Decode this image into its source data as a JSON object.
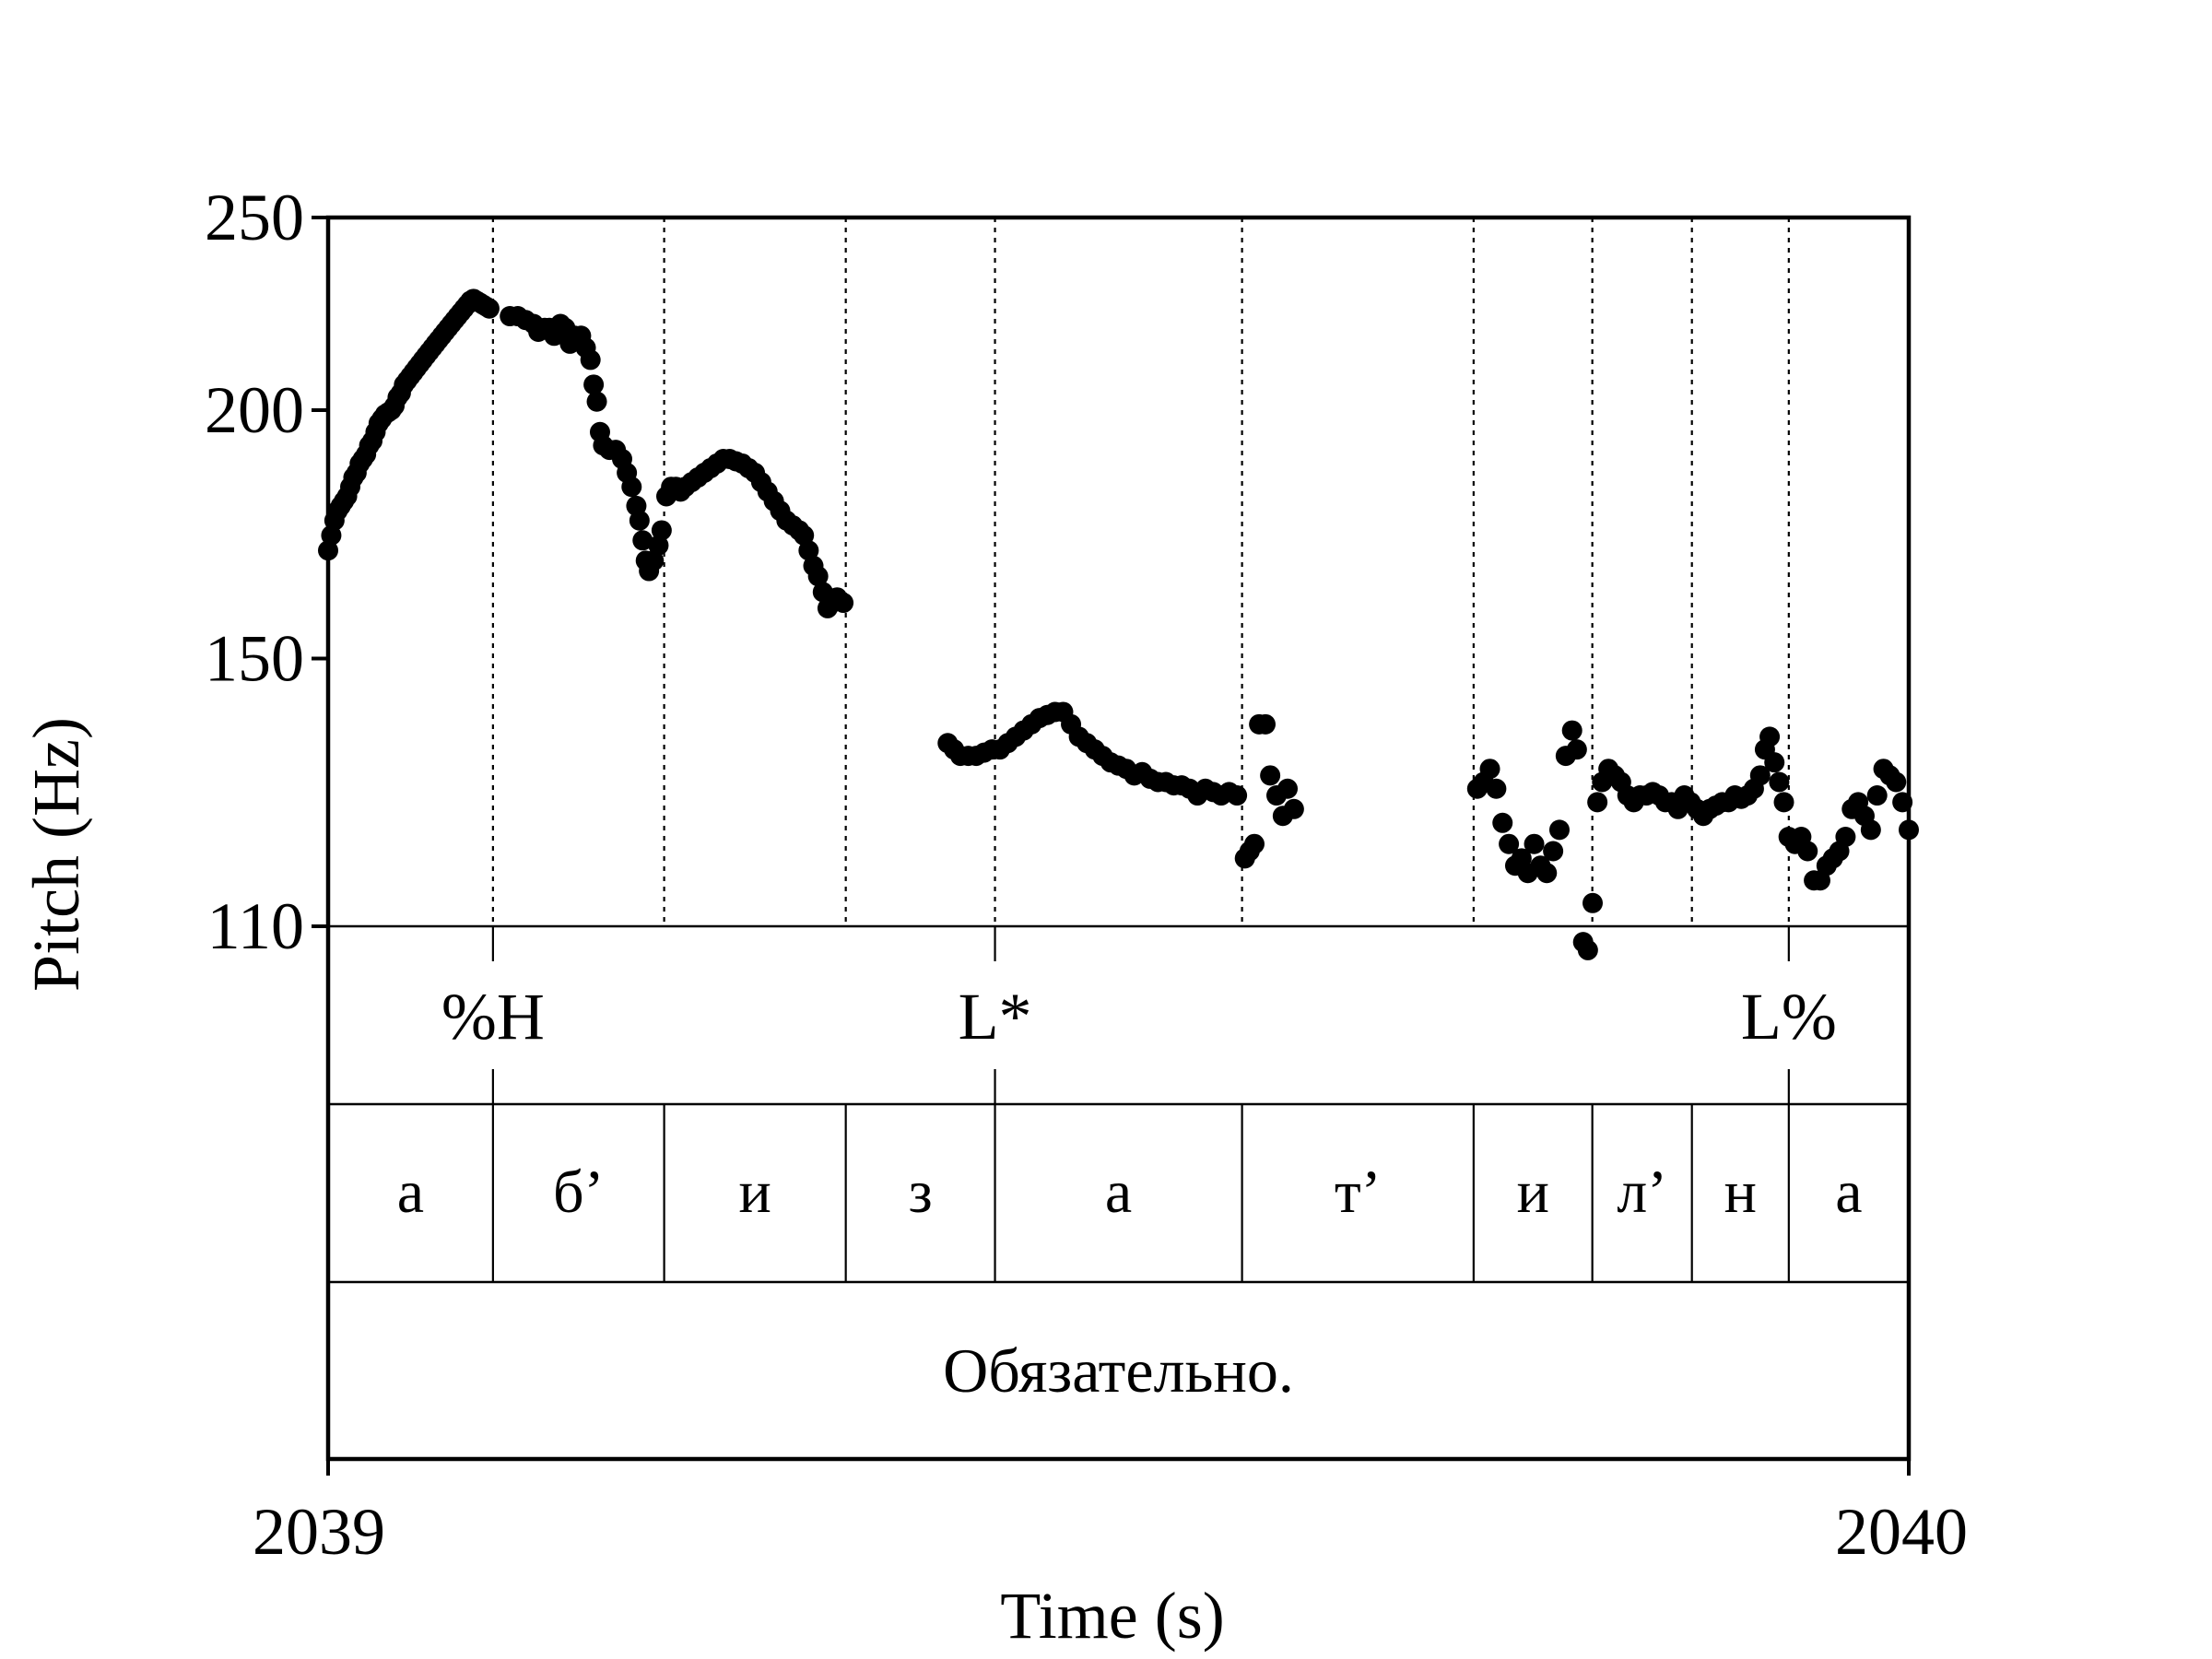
{
  "chart_data": {
    "type": "scatter",
    "xlabel": "Time (s)",
    "ylabel": "Pitch (Hz)",
    "xlim": [
      2039,
      2040
    ],
    "ylim": [
      110,
      250
    ],
    "y_scale": "log",
    "x_ticks": [
      "2039",
      "2040"
    ],
    "y_ticks": [
      {
        "value": 110,
        "label": "110"
      },
      {
        "value": 150,
        "label": "150"
      },
      {
        "value": 200,
        "label": "200"
      },
      {
        "value": 250,
        "label": "250"
      }
    ],
    "boundaries": [
      2039.1043,
      2039.2126,
      2039.3275,
      2039.4219,
      2039.5782,
      2039.7247,
      2039.7998,
      2039.8628,
      2039.9241
    ],
    "tone_tier": [
      {
        "label": "%H",
        "time": 2039.1043
      },
      {
        "label": "L*",
        "time": 2039.4219
      },
      {
        "label": "L%",
        "time": 2039.9241
      }
    ],
    "segment_tier": [
      {
        "label": "а",
        "start": 2039.0,
        "end": 2039.1043
      },
      {
        "label": "б’",
        "start": 2039.1043,
        "end": 2039.2126
      },
      {
        "label": "и",
        "start": 2039.2126,
        "end": 2039.3275
      },
      {
        "label": "з",
        "start": 2039.3275,
        "end": 2039.4219
      },
      {
        "label": "а",
        "start": 2039.4219,
        "end": 2039.5782
      },
      {
        "label": "т’",
        "start": 2039.5782,
        "end": 2039.7247
      },
      {
        "label": "и",
        "start": 2039.7247,
        "end": 2039.7998
      },
      {
        "label": "л’",
        "start": 2039.7998,
        "end": 2039.8628
      },
      {
        "label": "н",
        "start": 2039.8628,
        "end": 2039.9241
      },
      {
        "label": "а",
        "start": 2039.9241,
        "end": 2040.0
      }
    ],
    "word_tier": [
      {
        "label": "Обязательно.",
        "start": 2039.0,
        "end": 2040.0
      }
    ],
    "series": [
      {
        "values": [
          [
            2039.0,
            170
          ],
          [
            2039.002,
            173
          ],
          [
            2039.004,
            176
          ],
          [
            2039.006,
            178
          ],
          [
            2039.008,
            179
          ],
          [
            2039.01,
            180
          ],
          [
            2039.012,
            181
          ],
          [
            2039.014,
            183
          ],
          [
            2039.016,
            185
          ],
          [
            2039.018,
            186
          ],
          [
            2039.02,
            188
          ],
          [
            2039.022,
            189
          ],
          [
            2039.024,
            190
          ],
          [
            2039.026,
            192
          ],
          [
            2039.028,
            193
          ],
          [
            2039.03,
            195
          ],
          [
            2039.032,
            197
          ],
          [
            2039.034,
            198
          ],
          [
            2039.036,
            199
          ],
          [
            2039.038,
            199.5
          ],
          [
            2039.04,
            200
          ],
          [
            2039.042,
            201
          ],
          [
            2039.044,
            203
          ],
          [
            2039.046,
            204
          ],
          [
            2039.048,
            206
          ],
          [
            2039.05,
            207
          ],
          [
            2039.052,
            208
          ],
          [
            2039.054,
            209
          ],
          [
            2039.056,
            210
          ],
          [
            2039.058,
            211
          ],
          [
            2039.06,
            212
          ],
          [
            2039.062,
            213
          ],
          [
            2039.064,
            214
          ],
          [
            2039.066,
            215
          ],
          [
            2039.068,
            216
          ],
          [
            2039.07,
            217
          ],
          [
            2039.072,
            218
          ],
          [
            2039.074,
            219
          ],
          [
            2039.076,
            220
          ],
          [
            2039.078,
            221
          ],
          [
            2039.08,
            222
          ],
          [
            2039.082,
            223
          ],
          [
            2039.084,
            224
          ],
          [
            2039.086,
            225
          ],
          [
            2039.088,
            226
          ],
          [
            2039.09,
            227
          ],
          [
            2039.092,
            227.5
          ],
          [
            2039.094,
            227
          ],
          [
            2039.096,
            226.5
          ],
          [
            2039.098,
            226
          ],
          [
            2039.1,
            225.5
          ],
          [
            2039.102,
            225
          ],
          [
            2039.115,
            223
          ],
          [
            2039.12,
            223
          ],
          [
            2039.125,
            222
          ],
          [
            2039.13,
            221
          ],
          [
            2039.133,
            219
          ],
          [
            2039.137,
            220
          ],
          [
            2039.14,
            220
          ],
          [
            2039.143,
            218
          ],
          [
            2039.147,
            221
          ],
          [
            2039.15,
            220
          ],
          [
            2039.153,
            216
          ],
          [
            2039.156,
            218
          ],
          [
            2039.16,
            218
          ],
          [
            2039.163,
            215
          ],
          [
            2039.166,
            212
          ],
          [
            2039.168,
            206
          ],
          [
            2039.17,
            202
          ],
          [
            2039.172,
            195
          ],
          [
            2039.174,
            192
          ],
          [
            2039.178,
            191
          ],
          [
            2039.182,
            191
          ],
          [
            2039.186,
            189
          ],
          [
            2039.189,
            186
          ],
          [
            2039.192,
            183
          ],
          [
            2039.195,
            179
          ],
          [
            2039.197,
            176
          ],
          [
            2039.199,
            172
          ],
          [
            2039.201,
            168
          ],
          [
            2039.203,
            166
          ],
          [
            2039.206,
            168
          ],
          [
            2039.209,
            171
          ],
          [
            2039.211,
            174
          ],
          [
            2039.214,
            181
          ],
          [
            2039.217,
            183
          ],
          [
            2039.22,
            183
          ],
          [
            2039.223,
            182
          ],
          [
            2039.226,
            183
          ],
          [
            2039.23,
            184
          ],
          [
            2039.234,
            185
          ],
          [
            2039.238,
            186
          ],
          [
            2039.242,
            187
          ],
          [
            2039.246,
            188
          ],
          [
            2039.25,
            189
          ],
          [
            2039.254,
            189
          ],
          [
            2039.258,
            188.5
          ],
          [
            2039.262,
            188
          ],
          [
            2039.266,
            187
          ],
          [
            2039.27,
            186
          ],
          [
            2039.274,
            184
          ],
          [
            2039.278,
            182
          ],
          [
            2039.282,
            180
          ],
          [
            2039.286,
            178
          ],
          [
            2039.29,
            176
          ],
          [
            2039.294,
            175
          ],
          [
            2039.298,
            174
          ],
          [
            2039.301,
            173
          ],
          [
            2039.304,
            170
          ],
          [
            2039.307,
            167
          ],
          [
            2039.31,
            165
          ],
          [
            2039.313,
            162
          ],
          [
            2039.316,
            159
          ],
          [
            2039.319,
            160
          ],
          [
            2039.322,
            161
          ],
          [
            2039.326,
            160
          ],
          [
            2039.392,
            136
          ],
          [
            2039.396,
            135
          ],
          [
            2039.4,
            134
          ],
          [
            2039.405,
            134
          ],
          [
            2039.41,
            134
          ],
          [
            2039.415,
            134.5
          ],
          [
            2039.42,
            135
          ],
          [
            2039.425,
            135
          ],
          [
            2039.43,
            136
          ],
          [
            2039.435,
            137
          ],
          [
            2039.44,
            138
          ],
          [
            2039.445,
            139
          ],
          [
            2039.45,
            140
          ],
          [
            2039.455,
            140.5
          ],
          [
            2039.46,
            141
          ],
          [
            2039.465,
            141
          ],
          [
            2039.47,
            139
          ],
          [
            2039.475,
            137
          ],
          [
            2039.48,
            136
          ],
          [
            2039.485,
            135
          ],
          [
            2039.49,
            134
          ],
          [
            2039.495,
            133
          ],
          [
            2039.5,
            132.5
          ],
          [
            2039.505,
            132
          ],
          [
            2039.51,
            131
          ],
          [
            2039.515,
            131.5
          ],
          [
            2039.52,
            130.5
          ],
          [
            2039.525,
            130
          ],
          [
            2039.53,
            130
          ],
          [
            2039.535,
            129.5
          ],
          [
            2039.54,
            129.5
          ],
          [
            2039.545,
            129
          ],
          [
            2039.55,
            128
          ],
          [
            2039.555,
            129
          ],
          [
            2039.56,
            128.5
          ],
          [
            2039.565,
            128
          ],
          [
            2039.57,
            128.5
          ],
          [
            2039.575,
            128
          ],
          [
            2039.58,
            119
          ],
          [
            2039.583,
            120
          ],
          [
            2039.586,
            121
          ],
          [
            2039.589,
            139
          ],
          [
            2039.593,
            139
          ],
          [
            2039.596,
            131
          ],
          [
            2039.6,
            128
          ],
          [
            2039.604,
            125
          ],
          [
            2039.607,
            129
          ],
          [
            2039.611,
            126
          ],
          [
            2039.727,
            129
          ],
          [
            2039.731,
            130
          ],
          [
            2039.735,
            132
          ],
          [
            2039.739,
            129
          ],
          [
            2039.743,
            124
          ],
          [
            2039.747,
            121
          ],
          [
            2039.751,
            118
          ],
          [
            2039.755,
            119
          ],
          [
            2039.759,
            117
          ],
          [
            2039.763,
            121
          ],
          [
            2039.767,
            118
          ],
          [
            2039.771,
            117
          ],
          [
            2039.775,
            120
          ],
          [
            2039.779,
            123
          ],
          [
            2039.783,
            134
          ],
          [
            2039.787,
            138
          ],
          [
            2039.79,
            135
          ],
          [
            2039.794,
            108
          ],
          [
            2039.797,
            107
          ],
          [
            2039.8,
            113
          ],
          [
            2039.803,
            127
          ],
          [
            2039.806,
            130
          ],
          [
            2039.81,
            132
          ],
          [
            2039.814,
            131
          ],
          [
            2039.818,
            130
          ],
          [
            2039.822,
            128
          ],
          [
            2039.826,
            127
          ],
          [
            2039.83,
            128
          ],
          [
            2039.834,
            128
          ],
          [
            2039.838,
            128.5
          ],
          [
            2039.842,
            128
          ],
          [
            2039.846,
            127
          ],
          [
            2039.85,
            127
          ],
          [
            2039.854,
            126
          ],
          [
            2039.858,
            128
          ],
          [
            2039.862,
            127
          ],
          [
            2039.866,
            126
          ],
          [
            2039.87,
            125
          ],
          [
            2039.874,
            126
          ],
          [
            2039.878,
            126.5
          ],
          [
            2039.882,
            127
          ],
          [
            2039.886,
            127
          ],
          [
            2039.89,
            128
          ],
          [
            2039.894,
            127.5
          ],
          [
            2039.898,
            128
          ],
          [
            2039.902,
            129
          ],
          [
            2039.906,
            131
          ],
          [
            2039.909,
            135
          ],
          [
            2039.912,
            137
          ],
          [
            2039.915,
            133
          ],
          [
            2039.918,
            130
          ],
          [
            2039.921,
            127
          ],
          [
            2039.924,
            122
          ],
          [
            2039.928,
            121
          ],
          [
            2039.932,
            122
          ],
          [
            2039.936,
            120
          ],
          [
            2039.94,
            116
          ],
          [
            2039.944,
            116
          ],
          [
            2039.948,
            118
          ],
          [
            2039.952,
            119
          ],
          [
            2039.956,
            120
          ],
          [
            2039.96,
            122
          ],
          [
            2039.964,
            126
          ],
          [
            2039.968,
            127
          ],
          [
            2039.972,
            125
          ],
          [
            2039.976,
            123
          ],
          [
            2039.98,
            128
          ],
          [
            2039.984,
            132
          ],
          [
            2039.988,
            131
          ],
          [
            2039.992,
            130
          ],
          [
            2039.996,
            127
          ],
          [
            2040.0,
            123
          ]
        ]
      }
    ]
  }
}
